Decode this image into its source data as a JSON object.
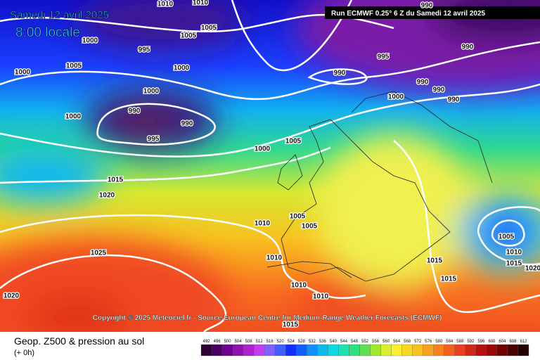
{
  "header": {
    "date": "Samedi 12 avril 2025",
    "time": "8:00 locale",
    "run": "Run ECMWF 0.25° 6 Z du Samedi 12 avril 2025"
  },
  "copyright": "Copyright © 2025 Meteociel.fr - Source European Centre for Medium-Range Weather Forecasts (ECMWF)",
  "footer": {
    "title": "Geop. Z500 & pression au sol",
    "lead": "(+ 0h)"
  },
  "isobar_labels": [
    1010,
    1010,
    1005,
    1005,
    995,
    1000,
    1005,
    1000,
    1000,
    995,
    990,
    990,
    990,
    990,
    990,
    990,
    1000,
    1000,
    990,
    990,
    995,
    1000,
    1000,
    1005,
    1015,
    1020,
    1010,
    1005,
    1005,
    1010,
    1025,
    1020,
    1010,
    1010,
    1015,
    1015,
    1005,
    1010,
    1015,
    1020,
    1015
  ],
  "colorbar": [
    492,
    496,
    500,
    504,
    508,
    512,
    516,
    520,
    524,
    528,
    532,
    536,
    540,
    544,
    548,
    552,
    556,
    560,
    564,
    568,
    572,
    576,
    580,
    584,
    588,
    592,
    596,
    600,
    604,
    608,
    612
  ]
}
